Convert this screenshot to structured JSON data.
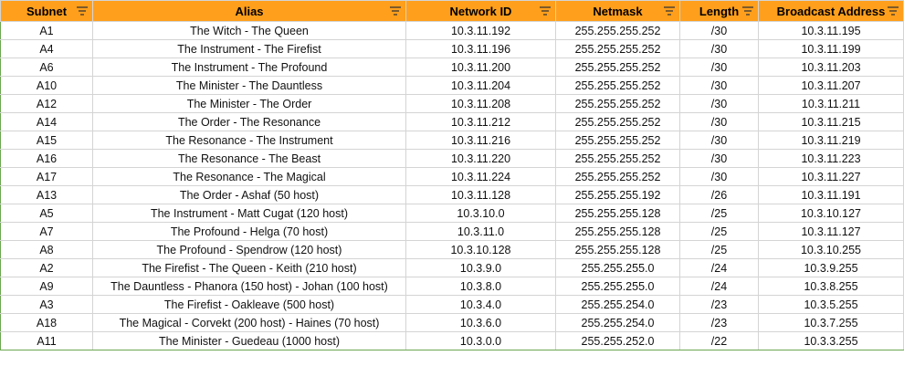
{
  "columns": [
    {
      "key": "subnet",
      "label": "Subnet"
    },
    {
      "key": "alias",
      "label": "Alias"
    },
    {
      "key": "network_id",
      "label": "Network ID"
    },
    {
      "key": "netmask",
      "label": "Netmask"
    },
    {
      "key": "length",
      "label": "Length"
    },
    {
      "key": "broadcast",
      "label": "Broadcast Address"
    }
  ],
  "rows": [
    {
      "subnet": "A1",
      "alias": "The Witch - The Queen",
      "network_id": "10.3.11.192",
      "netmask": "255.255.255.252",
      "length": "/30",
      "broadcast": "10.3.11.195"
    },
    {
      "subnet": "A4",
      "alias": "The Instrument - The Firefist",
      "network_id": "10.3.11.196",
      "netmask": "255.255.255.252",
      "length": "/30",
      "broadcast": "10.3.11.199"
    },
    {
      "subnet": "A6",
      "alias": "The Instrument - The Profound",
      "network_id": "10.3.11.200",
      "netmask": "255.255.255.252",
      "length": "/30",
      "broadcast": "10.3.11.203"
    },
    {
      "subnet": "A10",
      "alias": "The Minister - The Dauntless",
      "network_id": "10.3.11.204",
      "netmask": "255.255.255.252",
      "length": "/30",
      "broadcast": "10.3.11.207"
    },
    {
      "subnet": "A12",
      "alias": "The Minister - The Order",
      "network_id": "10.3.11.208",
      "netmask": "255.255.255.252",
      "length": "/30",
      "broadcast": "10.3.11.211"
    },
    {
      "subnet": "A14",
      "alias": "The Order - The Resonance",
      "network_id": "10.3.11.212",
      "netmask": "255.255.255.252",
      "length": "/30",
      "broadcast": "10.3.11.215"
    },
    {
      "subnet": "A15",
      "alias": "The Resonance - The Instrument",
      "network_id": "10.3.11.216",
      "netmask": "255.255.255.252",
      "length": "/30",
      "broadcast": "10.3.11.219"
    },
    {
      "subnet": "A16",
      "alias": "The Resonance - The Beast",
      "network_id": "10.3.11.220",
      "netmask": "255.255.255.252",
      "length": "/30",
      "broadcast": "10.3.11.223"
    },
    {
      "subnet": "A17",
      "alias": "The Resonance - The Magical",
      "network_id": "10.3.11.224",
      "netmask": "255.255.255.252",
      "length": "/30",
      "broadcast": "10.3.11.227"
    },
    {
      "subnet": "A13",
      "alias": "The Order - Ashaf (50 host)",
      "network_id": "10.3.11.128",
      "netmask": "255.255.255.192",
      "length": "/26",
      "broadcast": "10.3.11.191"
    },
    {
      "subnet": "A5",
      "alias": "The Instrument - Matt Cugat (120 host)",
      "network_id": "10.3.10.0",
      "netmask": "255.255.255.128",
      "length": "/25",
      "broadcast": "10.3.10.127"
    },
    {
      "subnet": "A7",
      "alias": "The Profound - Helga (70 host)",
      "network_id": "10.3.11.0",
      "netmask": "255.255.255.128",
      "length": "/25",
      "broadcast": "10.3.11.127"
    },
    {
      "subnet": "A8",
      "alias": "The Profound - Spendrow (120 host)",
      "network_id": "10.3.10.128",
      "netmask": "255.255.255.128",
      "length": "/25",
      "broadcast": "10.3.10.255"
    },
    {
      "subnet": "A2",
      "alias": "The Firefist - The Queen - Keith (210 host)",
      "network_id": "10.3.9.0",
      "netmask": "255.255.255.0",
      "length": "/24",
      "broadcast": "10.3.9.255"
    },
    {
      "subnet": "A9",
      "alias": "The Dauntless - Phanora (150 host) - Johan (100 host)",
      "network_id": "10.3.8.0",
      "netmask": "255.255.255.0",
      "length": "/24",
      "broadcast": "10.3.8.255"
    },
    {
      "subnet": "A3",
      "alias": "The Firefist - Oakleave (500 host)",
      "network_id": "10.3.4.0",
      "netmask": "255.255.254.0",
      "length": "/23",
      "broadcast": "10.3.5.255"
    },
    {
      "subnet": "A18",
      "alias": "The Magical - Corvekt (200 host) - Haines (70 host)",
      "network_id": "10.3.6.0",
      "netmask": "255.255.254.0",
      "length": "/23",
      "broadcast": "10.3.7.255"
    },
    {
      "subnet": "A11",
      "alias": "The Minister - Guedeau (1000 host)",
      "network_id": "10.3.0.0",
      "netmask": "255.255.252.0",
      "length": "/22",
      "broadcast": "10.3.3.255"
    }
  ],
  "style": {
    "header_bg": "#ff9f1c",
    "grid": "#d4d4d4",
    "edge": "#6aa84f"
  },
  "icons": {
    "filter": "filter-dropdown-icon"
  }
}
